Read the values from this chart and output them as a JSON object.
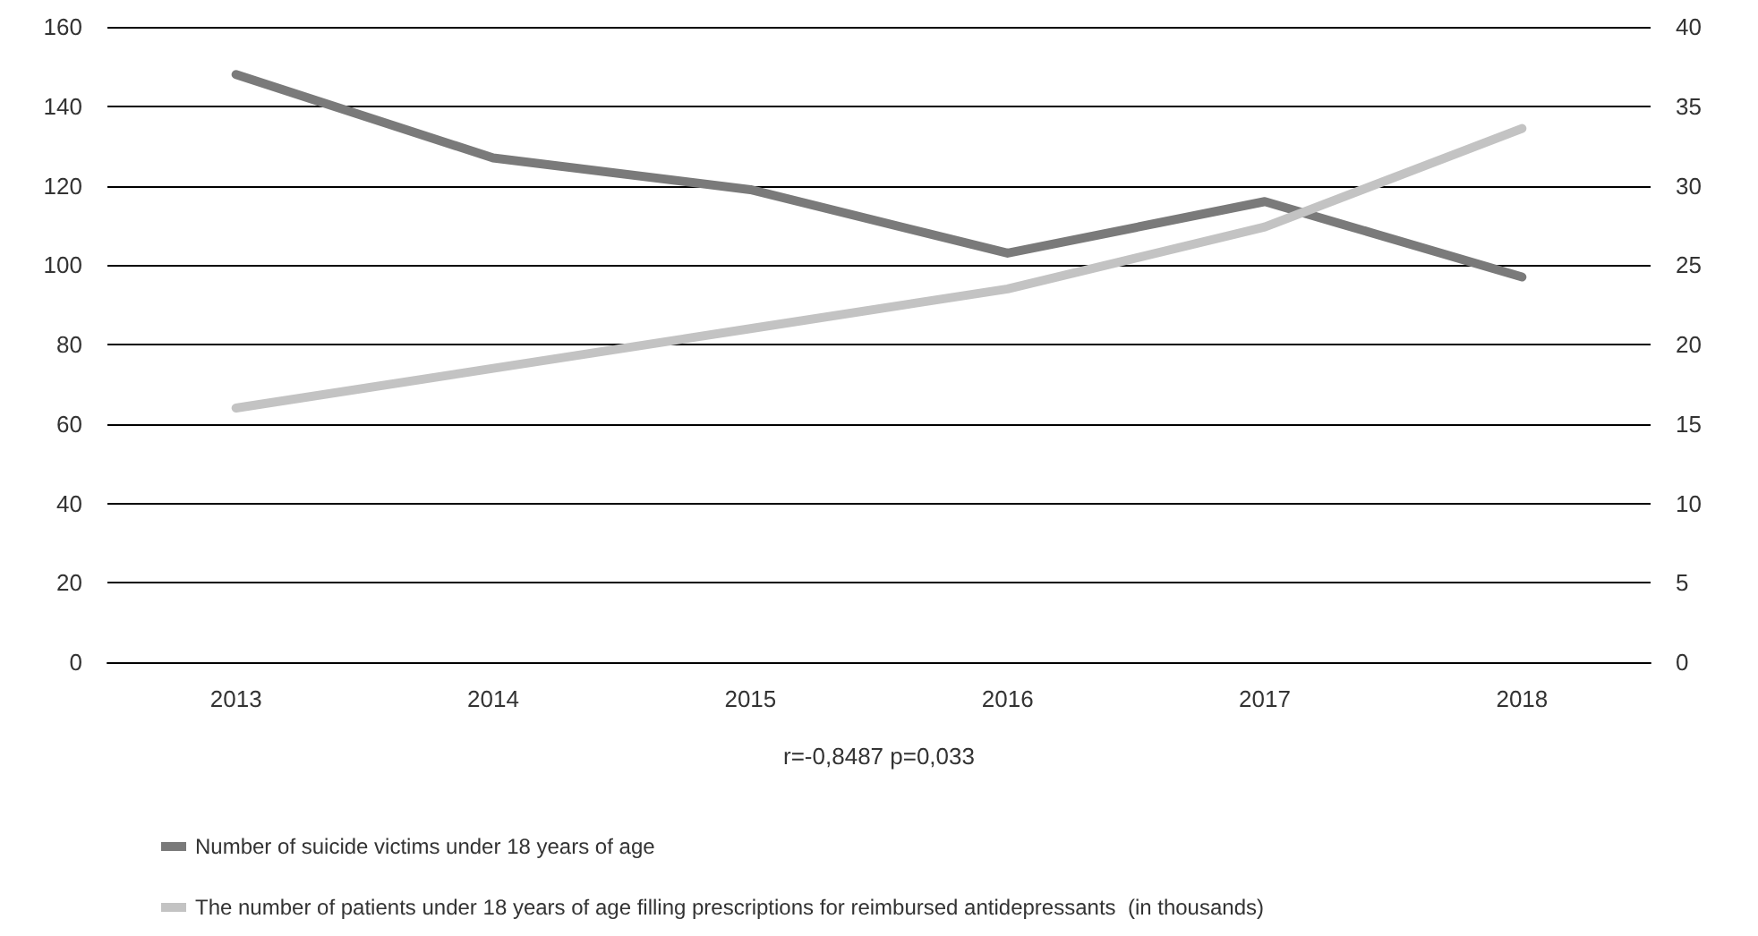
{
  "chart_data": {
    "type": "line",
    "categories": [
      "2013",
      "2014",
      "2015",
      "2016",
      "2017",
      "2018"
    ],
    "series": [
      {
        "name": "Number of suicide victims under 18 years of age",
        "color": "#7a7a7a",
        "values": [
          148,
          127,
          119,
          103,
          116,
          97
        ]
      },
      {
        "name": "The number of patients under 18 years of age filling prescriptions for reimbursed antidepressants  (in thousands)",
        "color": "#c3c3c3",
        "values": [
          16,
          18.5,
          21,
          23.5,
          27.4,
          33.6
        ],
        "axis": "y2"
      }
    ],
    "ylim": [
      0,
      160
    ],
    "yticks": [
      0,
      20,
      40,
      60,
      80,
      100,
      120,
      140,
      160
    ],
    "y2lim": [
      0,
      40
    ],
    "y2ticks": [
      0,
      5,
      10,
      15,
      20,
      25,
      30,
      35,
      40
    ],
    "annotations": [
      "r=-0,8487 p=0,033"
    ],
    "grid": "y",
    "legend": "bottom",
    "marker": "none",
    "line_style": "solid"
  }
}
